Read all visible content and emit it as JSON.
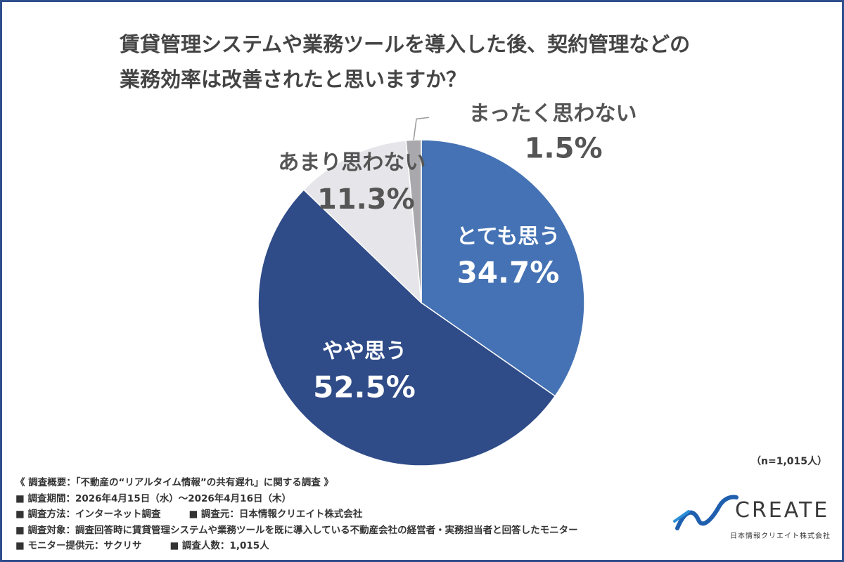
{
  "title_lines": [
    "賃貸管理システムや業務ツールを導入した後、契約管理などの",
    "業務効率は改善されたと思いますか？"
  ],
  "chart_data": {
    "type": "pie",
    "slices": [
      {
        "label": "とても思う",
        "value": 34.7,
        "value_label": "34.7%",
        "color": "#4472b4"
      },
      {
        "label": "やや思う",
        "value": 52.5,
        "value_label": "52.5%",
        "color": "#2f4b88"
      },
      {
        "label": "あまり思わない",
        "value": 11.3,
        "value_label": "11.3%",
        "color": "#e6e6ea"
      },
      {
        "label": "まったく思わない",
        "value": 1.5,
        "value_label": "1.5%",
        "color": "#a9a9ad"
      }
    ]
  },
  "sample_size": "（n=1,015人）",
  "survey": {
    "heading": "《 調査概要：「不動産の“リアルタイム情報”の共有遅れ」に関する調査 》",
    "period": "■ 調査期間：2026年4月15日（水）〜2026年4月16日（木）",
    "method": "■ 調査方法：インターネット調査",
    "organizer": "■ 調査元：日本情報クリエイト株式会社",
    "target": "■ 調査対象：調査回答時に賃貸管理システムや業務ツールを既に導入している不動産会社の経営者・実務担当者と回答したモニター",
    "provider": "■ モニター提供元：サクリサ",
    "respondents": "■ 調査人数：1,015人"
  },
  "logo": {
    "word": "CREATE",
    "subtitle": "日本情報クリエイト株式会社"
  }
}
